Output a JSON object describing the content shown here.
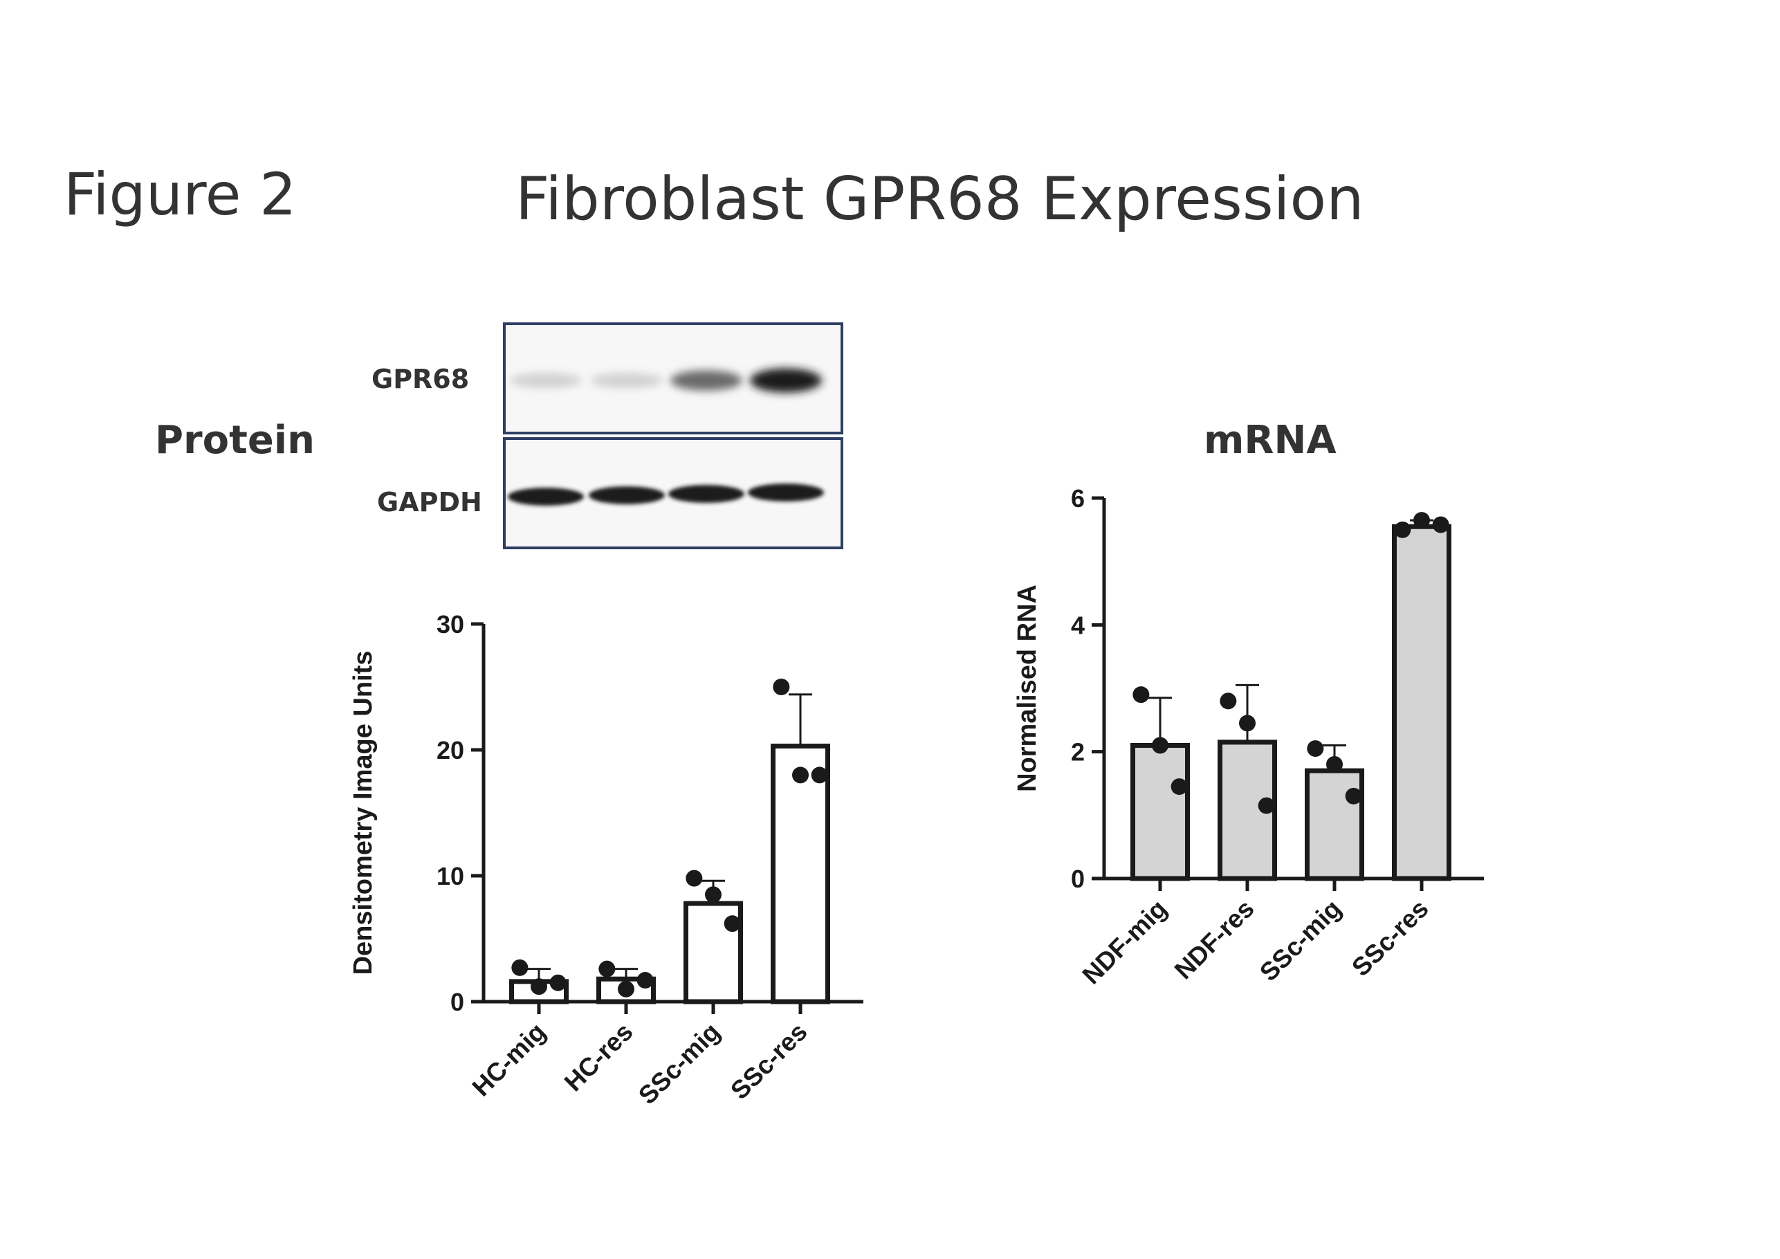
{
  "figure": {
    "label": "Figure 2",
    "title": "Fibroblast GPR68 Expression"
  },
  "protein": {
    "section_label": "Protein",
    "blot": {
      "bands": [
        {
          "name": "GPR68",
          "intensities": [
            0.12,
            0.12,
            0.6,
            0.95
          ]
        },
        {
          "name": "GAPDH",
          "intensities": [
            1,
            1,
            1,
            1
          ]
        }
      ]
    }
  },
  "mrna": {
    "section_label": "mRNA"
  },
  "chart_data": [
    {
      "type": "bar",
      "id": "protein-densitometry",
      "categories": [
        "HC-mig",
        "HC-res",
        "SSc-mig",
        "SSc-res"
      ],
      "values": [
        1.6,
        1.8,
        7.8,
        20.3
      ],
      "error": [
        1.0,
        0.8,
        1.8,
        4.1
      ],
      "points": [
        [
          2.7,
          1.2,
          1.5
        ],
        [
          2.6,
          1.0,
          1.7
        ],
        [
          9.8,
          8.5,
          6.2
        ],
        [
          25.0,
          18.0,
          18.0
        ]
      ],
      "ylabel": "Densitometry Image Units",
      "xlabel": "",
      "ylim": [
        0,
        30
      ],
      "yticks": [
        0,
        10,
        20,
        30
      ],
      "bar_fill": "#ffffff",
      "bar_stroke": "#1a1a1a",
      "grid": false
    },
    {
      "type": "bar",
      "id": "mrna-normalised",
      "categories": [
        "NDF-mig",
        "NDF-res",
        "SSc-mig",
        "SSc-res"
      ],
      "values": [
        2.1,
        2.15,
        1.7,
        5.55
      ],
      "error": [
        0.75,
        0.9,
        0.4,
        0.1
      ],
      "points": [
        [
          2.9,
          2.1,
          1.45
        ],
        [
          2.8,
          2.45,
          1.15
        ],
        [
          2.05,
          1.8,
          1.3
        ],
        [
          5.5,
          5.65,
          5.58
        ]
      ],
      "ylabel": "Normalised RNA",
      "xlabel": "",
      "ylim": [
        0,
        6
      ],
      "yticks": [
        0,
        2,
        4,
        6
      ],
      "bar_fill": "#d4d4d4",
      "bar_stroke": "#1a1a1a",
      "grid": false
    }
  ]
}
